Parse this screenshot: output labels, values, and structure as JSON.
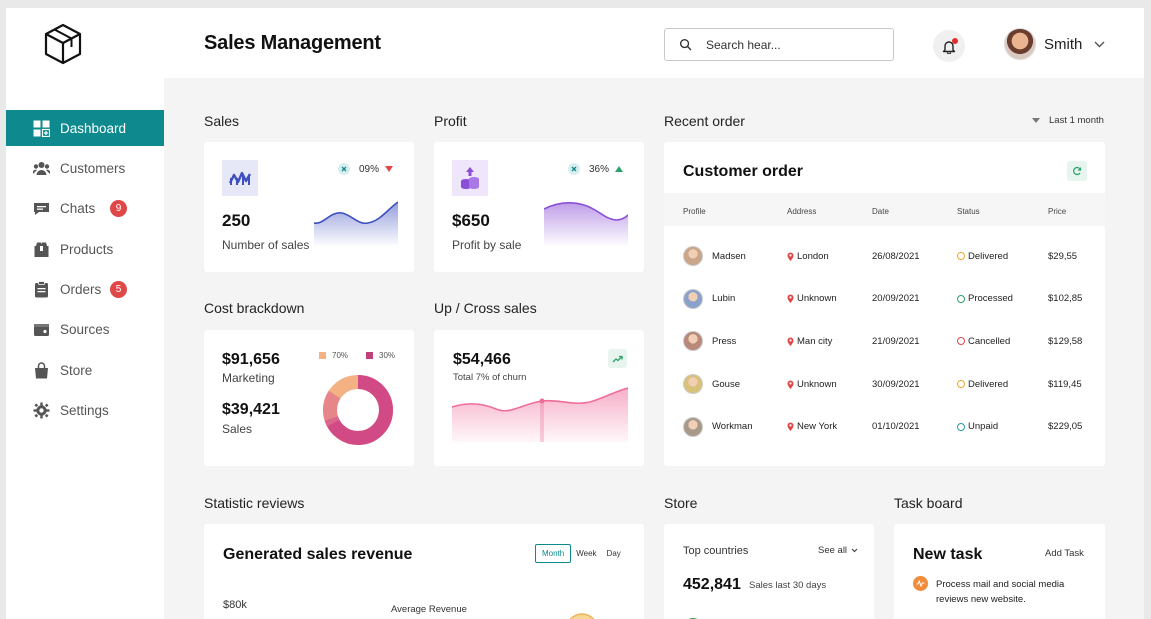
{
  "header": {
    "title": "Sales Management",
    "search_placeholder": "Search hear...",
    "user_name": "Smith"
  },
  "sidebar": {
    "items": [
      {
        "label": "Dashboard",
        "icon": "dashboard-icon",
        "active": true
      },
      {
        "label": "Customers",
        "icon": "users-icon"
      },
      {
        "label": "Chats",
        "icon": "chat-icon",
        "badge": "9"
      },
      {
        "label": "Products",
        "icon": "box-icon"
      },
      {
        "label": "Orders",
        "icon": "clipboard-icon",
        "badge": "5"
      },
      {
        "label": "Sources",
        "icon": "wallet-icon"
      },
      {
        "label": "Store",
        "icon": "bag-icon"
      },
      {
        "label": "Settings",
        "icon": "gear-icon"
      }
    ]
  },
  "sales": {
    "section": "Sales",
    "value": "250",
    "label": "Number of sales",
    "percent": "09%",
    "trend": "down"
  },
  "profit": {
    "section": "Profit",
    "value": "$650",
    "label": "Profit by sale",
    "percent": "36%",
    "trend": "up"
  },
  "cost": {
    "section": "Cost brackdown",
    "marketing_value": "$91,656",
    "marketing_label": "Marketing",
    "sales_value": "$39,421",
    "sales_label": "Sales",
    "legend": [
      {
        "label": "70%",
        "color": "#f4b183"
      },
      {
        "label": "30%",
        "color": "#c2407a"
      }
    ]
  },
  "upcross": {
    "section": "Up / Cross sales",
    "value": "$54,466",
    "label": "Total 7% of churn"
  },
  "recent": {
    "section": "Recent order",
    "filter": "Last 1 month",
    "title": "Customer order",
    "columns": [
      "Profile",
      "Address",
      "Date",
      "Status",
      "Price"
    ],
    "rows": [
      {
        "name": "Madsen",
        "address": "London",
        "date": "26/08/2021",
        "status": "Delivered",
        "status_color": "#f0a830",
        "price": "$29,55"
      },
      {
        "name": "Lubin",
        "address": "Unknown",
        "date": "20/09/2021",
        "status": "Processed",
        "status_color": "#2aa36b",
        "price": "$102,85"
      },
      {
        "name": "Press",
        "address": "Man city",
        "date": "21/09/2021",
        "status": "Cancelled",
        "status_color": "#e04848",
        "price": "$129,58"
      },
      {
        "name": "Gouse",
        "address": "Unknown",
        "date": "30/09/2021",
        "status": "Delivered",
        "status_color": "#f0a830",
        "price": "$119,45"
      },
      {
        "name": "Workman",
        "address": "New York",
        "date": "01/10/2021",
        "status": "Unpaid",
        "status_color": "#2a9aa3",
        "price": "$229,05"
      }
    ]
  },
  "stats": {
    "section": "Statistic reviews",
    "title": "Generated sales revenue",
    "tabs": [
      "Month",
      "Week",
      "Day"
    ],
    "y_label": "$80k",
    "series_label": "Average Revenue"
  },
  "store": {
    "section": "Store",
    "subtitle": "Top countries",
    "see_all": "See all",
    "value": "452,841",
    "label": "Sales last 30 days"
  },
  "task": {
    "section": "Task board",
    "title": "New task",
    "add": "Add Task",
    "item": "Process mail and social media reviews new website."
  },
  "colors": {
    "accent": "#0e8a8e",
    "badge": "#e04848",
    "sales_area": "#3f4fbf",
    "profit_area": "#8a4fd6",
    "upcross_area": "#f06c9b"
  }
}
